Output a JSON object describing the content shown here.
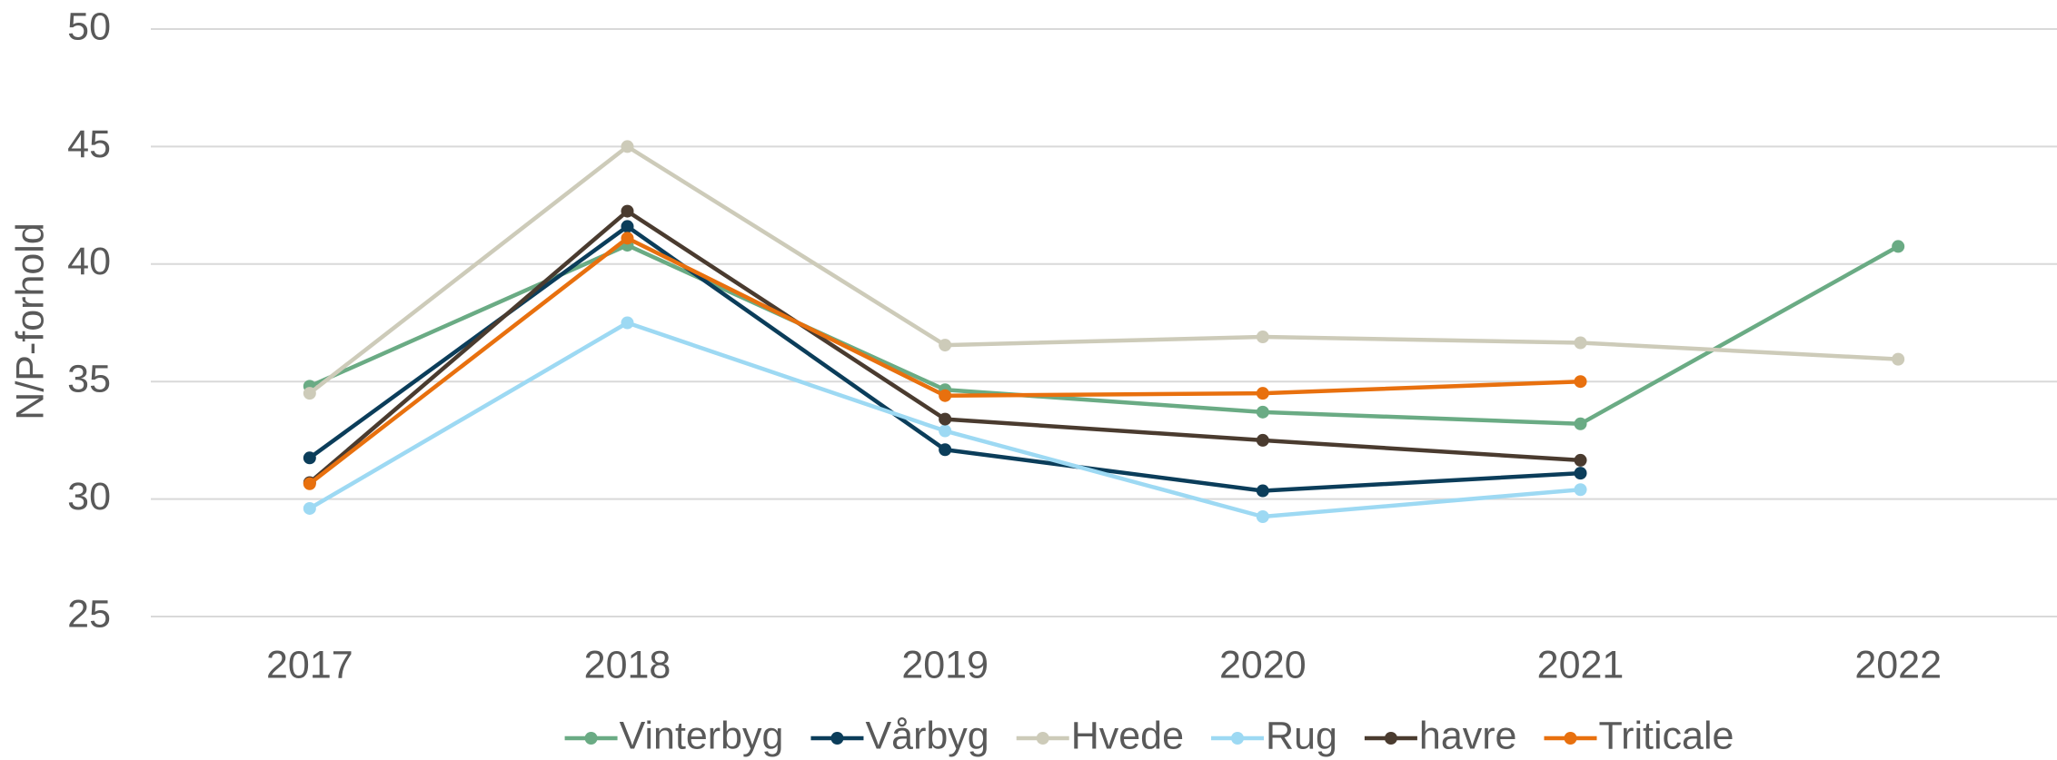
{
  "chart_data": {
    "type": "line",
    "y_label": "N/P-forhold",
    "categories": [
      "2017",
      "2018",
      "2019",
      "2020",
      "2021",
      "2022"
    ],
    "series": [
      {
        "name": "Vinterbyg",
        "color": "#6aab84",
        "values": [
          34.8,
          40.8,
          34.65,
          33.7,
          33.2,
          40.75
        ]
      },
      {
        "name": "Vårbyg",
        "color": "#0b3d5a",
        "values": [
          31.75,
          41.6,
          32.1,
          30.35,
          31.1,
          null
        ]
      },
      {
        "name": "Hvede",
        "color": "#cdcbb9",
        "values": [
          34.5,
          45.0,
          36.55,
          36.9,
          36.65,
          35.95
        ]
      },
      {
        "name": "Rug",
        "color": "#9dd9f3",
        "values": [
          29.6,
          37.5,
          32.9,
          29.25,
          30.4,
          null
        ]
      },
      {
        "name": "havre",
        "color": "#4a3b2f",
        "values": [
          30.7,
          42.25,
          33.4,
          32.5,
          31.65,
          null
        ]
      },
      {
        "name": "Triticale",
        "color": "#e8700e",
        "values": [
          30.65,
          41.1,
          34.4,
          34.5,
          35.0,
          null
        ]
      }
    ],
    "ylim": [
      25,
      50
    ],
    "yticks": [
      25,
      30,
      35,
      40,
      45,
      50
    ],
    "grid": true,
    "legend": "bottom"
  }
}
